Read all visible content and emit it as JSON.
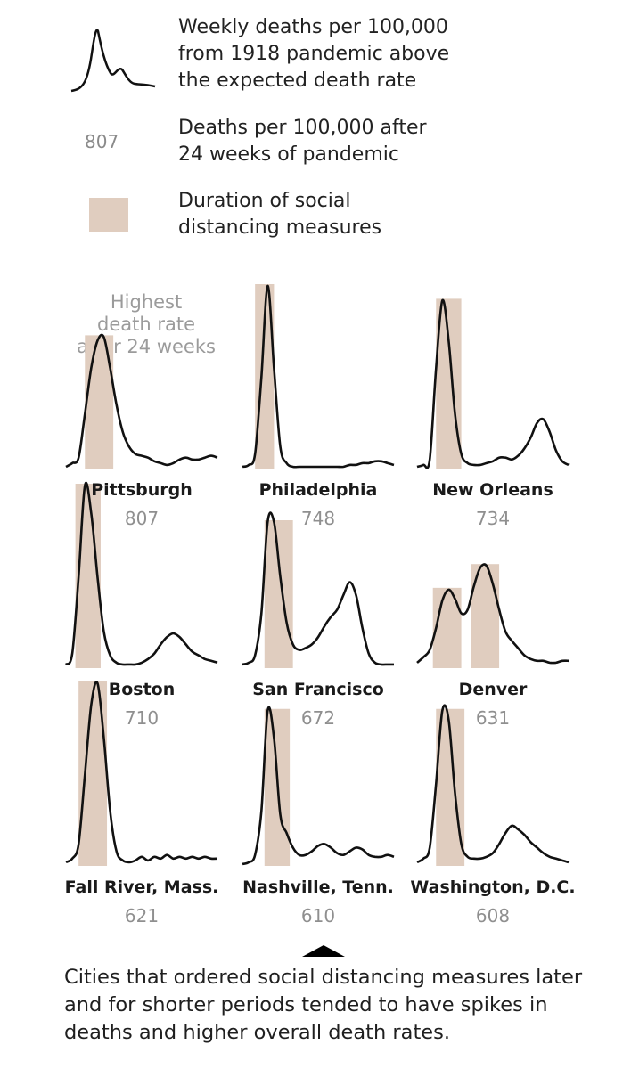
{
  "legend": {
    "line_label": "Weekly deaths per 100,000\nfrom 1918 pandemic above\nthe expected death rate",
    "number_example": "807",
    "number_label": "Deaths per 100,000 after\n24 weeks of pandemic",
    "bar_label": "Duration of social\ndistancing measures"
  },
  "annotation": "Highest\ndeath rate\nafter 24 weeks",
  "footer": "Cities that ordered social distancing measures later and for shorter periods tended to have spikes in deaths and higher overall death rates.",
  "colors": {
    "distancing": "#e0cdbf",
    "line": "#111111",
    "muted": "#8f8f8f"
  },
  "icons": {
    "triangle": "up-triangle-icon"
  },
  "chart_data": {
    "type": "line",
    "x": [
      0,
      1,
      2,
      3,
      4,
      5,
      6,
      7,
      8,
      9,
      10,
      11,
      12,
      13,
      14,
      15,
      16,
      17,
      18,
      19,
      20,
      21,
      22,
      23,
      24
    ],
    "ylim": [
      0,
      1
    ],
    "series": [
      {
        "name": "Pittsburgh",
        "total": "807",
        "distancing": [
          [
            3,
            7.5
          ]
        ],
        "values": [
          0.01,
          0.03,
          0.06,
          0.3,
          0.55,
          0.7,
          0.72,
          0.55,
          0.35,
          0.2,
          0.12,
          0.08,
          0.07,
          0.06,
          0.04,
          0.03,
          0.02,
          0.03,
          0.05,
          0.06,
          0.05,
          0.05,
          0.06,
          0.07,
          0.06
        ]
      },
      {
        "name": "Philadelphia",
        "total": "748",
        "distancing": [
          [
            2,
            5
          ]
        ],
        "values": [
          0.01,
          0.02,
          0.08,
          0.5,
          1.0,
          0.55,
          0.12,
          0.03,
          0.01,
          0.01,
          0.01,
          0.01,
          0.01,
          0.01,
          0.01,
          0.01,
          0.01,
          0.02,
          0.02,
          0.03,
          0.03,
          0.04,
          0.04,
          0.03,
          0.02
        ]
      },
      {
        "name": "New Orleans",
        "total": "734",
        "distancing": [
          [
            3,
            7
          ]
        ],
        "values": [
          0.01,
          0.02,
          0.05,
          0.55,
          0.92,
          0.7,
          0.3,
          0.08,
          0.03,
          0.02,
          0.02,
          0.03,
          0.04,
          0.06,
          0.06,
          0.05,
          0.07,
          0.11,
          0.17,
          0.25,
          0.27,
          0.2,
          0.1,
          0.04,
          0.02
        ]
      },
      {
        "name": "Boston",
        "total": "710",
        "distancing": [
          [
            1.5,
            5.5
          ]
        ],
        "values": [
          0.02,
          0.08,
          0.5,
          1.0,
          0.85,
          0.5,
          0.2,
          0.07,
          0.03,
          0.02,
          0.02,
          0.02,
          0.03,
          0.05,
          0.08,
          0.13,
          0.17,
          0.19,
          0.17,
          0.13,
          0.09,
          0.07,
          0.05,
          0.04,
          0.03
        ]
      },
      {
        "name": "San Francisco",
        "total": "672",
        "distancing": [
          [
            3.5,
            8
          ]
        ],
        "values": [
          0.02,
          0.03,
          0.07,
          0.3,
          0.8,
          0.8,
          0.5,
          0.25,
          0.13,
          0.1,
          0.11,
          0.13,
          0.17,
          0.23,
          0.28,
          0.32,
          0.4,
          0.47,
          0.4,
          0.22,
          0.08,
          0.03,
          0.02,
          0.02,
          0.02
        ]
      },
      {
        "name": "Denver",
        "total": "631",
        "distancing": [
          [
            2.5,
            7
          ],
          [
            8.5,
            13
          ]
        ],
        "values": [
          0.03,
          0.06,
          0.1,
          0.22,
          0.37,
          0.43,
          0.38,
          0.3,
          0.32,
          0.45,
          0.55,
          0.56,
          0.46,
          0.32,
          0.2,
          0.15,
          0.11,
          0.07,
          0.05,
          0.04,
          0.04,
          0.03,
          0.03,
          0.04,
          0.04
        ]
      },
      {
        "name": "Fall River, Mass.",
        "total": "621",
        "distancing": [
          [
            2,
            6.5
          ]
        ],
        "values": [
          0.02,
          0.04,
          0.12,
          0.5,
          0.88,
          1.0,
          0.7,
          0.3,
          0.08,
          0.03,
          0.02,
          0.03,
          0.05,
          0.03,
          0.05,
          0.04,
          0.06,
          0.04,
          0.05,
          0.04,
          0.05,
          0.04,
          0.05,
          0.04,
          0.04
        ]
      },
      {
        "name": "Nashville, Tenn.",
        "total": "610",
        "distancing": [
          [
            3.5,
            7.5
          ]
        ],
        "values": [
          0.01,
          0.02,
          0.06,
          0.3,
          0.85,
          0.7,
          0.28,
          0.18,
          0.1,
          0.06,
          0.06,
          0.08,
          0.11,
          0.12,
          0.1,
          0.07,
          0.06,
          0.08,
          0.1,
          0.09,
          0.06,
          0.05,
          0.05,
          0.06,
          0.05
        ]
      },
      {
        "name": "Washington, D.C.",
        "total": "608",
        "distancing": [
          [
            3,
            7.5
          ]
        ],
        "values": [
          0.02,
          0.04,
          0.1,
          0.45,
          0.85,
          0.8,
          0.4,
          0.12,
          0.05,
          0.04,
          0.04,
          0.05,
          0.07,
          0.12,
          0.18,
          0.22,
          0.2,
          0.17,
          0.13,
          0.1,
          0.07,
          0.05,
          0.04,
          0.03,
          0.02
        ]
      }
    ]
  }
}
